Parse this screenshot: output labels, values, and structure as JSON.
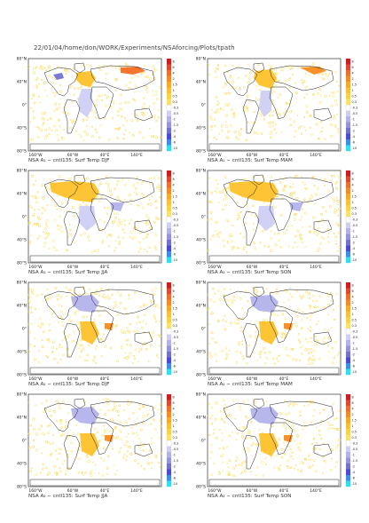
{
  "header": {
    "path": "22/01/04/home/don/WORK/Experiments/NSAforcing/Plots/tpath"
  },
  "colorbar": {
    "ticks": [
      "8",
      "6",
      "4",
      "2",
      "1.5",
      "1",
      "0.5",
      "0.3",
      "-0.3",
      "-0.5",
      "-1",
      "-1.5",
      "-2",
      "-4",
      "-6",
      "-10"
    ],
    "colors": [
      "#d7191c",
      "#e8452a",
      "#f46d23",
      "#f88b1c",
      "#fbab1a",
      "#fdc22a",
      "#fbd43a",
      "#fde25e",
      "#ffffff",
      "#cfcff4",
      "#b3b3ec",
      "#9494e0",
      "#7272d4",
      "#4a4ae0",
      "#3a8ef0",
      "#25e5f4"
    ]
  },
  "axes": {
    "ylabels": [
      "80°N",
      "40°N",
      "0°",
      "40°S",
      "80°S"
    ],
    "xlabels": [
      "160°W",
      "60°W",
      "40°E",
      "140°E"
    ]
  },
  "chart_data": [
    {
      "type": "heatmap",
      "title": "NSA A₁ − cntl135: Surf Temp DJF",
      "pattern": "warm-natl-cold-labrador",
      "zrange": [
        -10,
        8
      ]
    },
    {
      "type": "heatmap",
      "title": "NSA A₁ − cntl135: Surf Temp MAM",
      "pattern": "warm-natl",
      "zrange": [
        -10,
        8
      ]
    },
    {
      "type": "heatmap",
      "title": "NSA A₁ − cntl135: Surf Temp JJA",
      "pattern": "warm-natl-cool-satl",
      "zrange": [
        -10,
        8
      ]
    },
    {
      "type": "heatmap",
      "title": "NSA A₁ − cntl135: Surf Temp SON",
      "pattern": "warm-natl-cool-satl",
      "zrange": [
        -10,
        8
      ]
    },
    {
      "type": "heatmap",
      "title": "NSA A₂ − cntl135: Surf Temp DJF",
      "pattern": "cool-natl-warm-satl",
      "zrange": [
        -10,
        8
      ]
    },
    {
      "type": "heatmap",
      "title": "NSA A₂ − cntl135: Surf Temp MAM",
      "pattern": "cool-natl-warm-satl",
      "zrange": [
        -10,
        8
      ]
    },
    {
      "type": "heatmap",
      "title": "NSA A₂ − cntl135: Surf Temp JJA",
      "pattern": "cool-natl-warm-satl",
      "zrange": [
        -10,
        8
      ]
    },
    {
      "type": "heatmap",
      "title": "NSA A₂ − cntl135: Surf Temp SON",
      "pattern": "cool-natl-warm-satl",
      "zrange": [
        -10,
        8
      ]
    }
  ]
}
